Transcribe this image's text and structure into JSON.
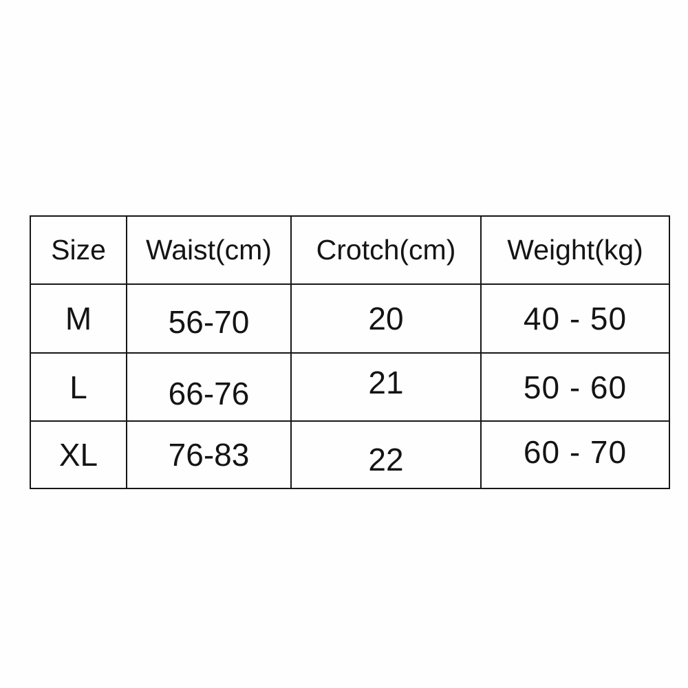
{
  "colors": {
    "background": "#fefefe",
    "border": "#161616",
    "text": "#141414"
  },
  "chart_data": {
    "type": "table",
    "title": "",
    "columns": [
      "Size",
      "Waist(cm)",
      "Crotch(cm)",
      "Weight(kg)"
    ],
    "rows": [
      [
        "M",
        "56-70",
        "20",
        "40 - 50"
      ],
      [
        "L",
        "66-76",
        "21",
        "50 - 60"
      ],
      [
        "XL",
        "76-83",
        "22",
        "60 - 70"
      ]
    ]
  }
}
